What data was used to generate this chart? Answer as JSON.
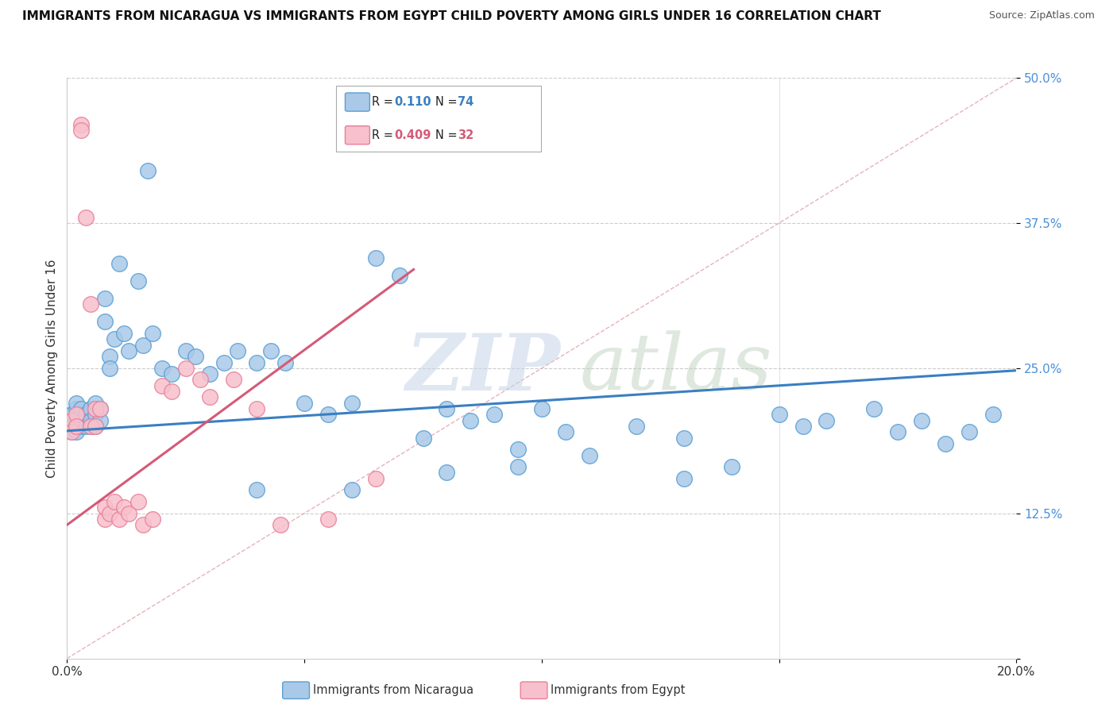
{
  "title": "IMMIGRANTS FROM NICARAGUA VS IMMIGRANTS FROM EGYPT CHILD POVERTY AMONG GIRLS UNDER 16 CORRELATION CHART",
  "source": "Source: ZipAtlas.com",
  "ylabel": "Child Poverty Among Girls Under 16",
  "xlim": [
    0.0,
    0.2
  ],
  "ylim": [
    0.0,
    0.5
  ],
  "nicaragua_R": 0.11,
  "nicaragua_N": 74,
  "egypt_R": 0.409,
  "egypt_N": 32,
  "nicaragua_color": "#aac9e8",
  "nicaragua_edge": "#5a9fd4",
  "egypt_color": "#f7c0cc",
  "egypt_edge": "#e8809a",
  "nicaragua_line_color": "#3a7fc1",
  "egypt_line_color": "#d45a78",
  "diagonal_color": "#e0a0a8",
  "watermark_zip_color": "#c5d5e8",
  "watermark_atlas_color": "#b8ccb8",
  "legend_label_nic": "Immigrants from Nicaragua",
  "legend_label_egy": "Immigrants from Egypt",
  "nic_trend_x0": 0.0,
  "nic_trend_y0": 0.196,
  "nic_trend_x1": 0.2,
  "nic_trend_y1": 0.248,
  "egy_trend_x0": 0.0,
  "egy_trend_y0": 0.115,
  "egy_trend_x1": 0.073,
  "egy_trend_y1": 0.335,
  "nic_x": [
    0.001,
    0.001,
    0.001,
    0.002,
    0.002,
    0.002,
    0.002,
    0.003,
    0.003,
    0.003,
    0.003,
    0.004,
    0.004,
    0.004,
    0.005,
    0.005,
    0.005,
    0.006,
    0.006,
    0.006,
    0.007,
    0.007,
    0.008,
    0.008,
    0.009,
    0.009,
    0.01,
    0.011,
    0.012,
    0.013,
    0.015,
    0.016,
    0.017,
    0.018,
    0.02,
    0.022,
    0.025,
    0.027,
    0.03,
    0.033,
    0.036,
    0.04,
    0.043,
    0.046,
    0.05,
    0.055,
    0.06,
    0.065,
    0.07,
    0.075,
    0.08,
    0.085,
    0.09,
    0.095,
    0.1,
    0.105,
    0.11,
    0.12,
    0.13,
    0.14,
    0.15,
    0.155,
    0.16,
    0.17,
    0.175,
    0.18,
    0.185,
    0.19,
    0.195,
    0.13,
    0.095,
    0.08,
    0.06,
    0.04
  ],
  "nic_y": [
    0.21,
    0.195,
    0.2,
    0.205,
    0.215,
    0.195,
    0.22,
    0.21,
    0.205,
    0.2,
    0.215,
    0.205,
    0.21,
    0.2,
    0.215,
    0.205,
    0.2,
    0.22,
    0.2,
    0.21,
    0.205,
    0.215,
    0.29,
    0.31,
    0.26,
    0.25,
    0.275,
    0.34,
    0.28,
    0.265,
    0.325,
    0.27,
    0.42,
    0.28,
    0.25,
    0.245,
    0.265,
    0.26,
    0.245,
    0.255,
    0.265,
    0.255,
    0.265,
    0.255,
    0.22,
    0.21,
    0.22,
    0.345,
    0.33,
    0.19,
    0.215,
    0.205,
    0.21,
    0.18,
    0.215,
    0.195,
    0.175,
    0.2,
    0.19,
    0.165,
    0.21,
    0.2,
    0.205,
    0.215,
    0.195,
    0.205,
    0.185,
    0.195,
    0.21,
    0.155,
    0.165,
    0.16,
    0.145,
    0.145
  ],
  "egy_x": [
    0.001,
    0.001,
    0.002,
    0.002,
    0.003,
    0.003,
    0.004,
    0.005,
    0.005,
    0.006,
    0.006,
    0.007,
    0.008,
    0.008,
    0.009,
    0.01,
    0.011,
    0.012,
    0.013,
    0.015,
    0.016,
    0.018,
    0.02,
    0.022,
    0.025,
    0.028,
    0.03,
    0.035,
    0.04,
    0.045,
    0.055,
    0.065
  ],
  "egy_y": [
    0.205,
    0.195,
    0.21,
    0.2,
    0.46,
    0.455,
    0.38,
    0.305,
    0.2,
    0.215,
    0.2,
    0.215,
    0.12,
    0.13,
    0.125,
    0.135,
    0.12,
    0.13,
    0.125,
    0.135,
    0.115,
    0.12,
    0.235,
    0.23,
    0.25,
    0.24,
    0.225,
    0.24,
    0.215,
    0.115,
    0.12,
    0.155
  ]
}
